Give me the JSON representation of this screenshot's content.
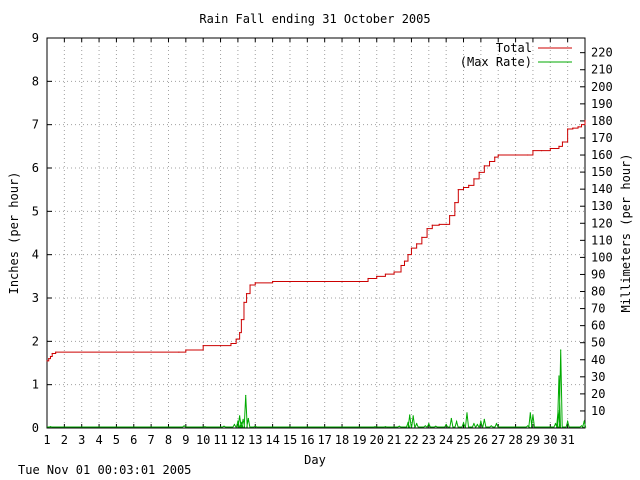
{
  "chart_data": {
    "type": "line",
    "title": "Rain Fall ending 31 October 2005",
    "xlabel": "Day",
    "ylabel": "Inches (per hour)",
    "y2label": "Millimeters (per hour)",
    "xlim": [
      1,
      32
    ],
    "ylim": [
      0,
      9
    ],
    "y2lim": [
      0,
      228.6
    ],
    "x_ticks": [
      "1",
      "2",
      "3",
      "4",
      "5",
      "6",
      "7",
      "8",
      "9",
      "10",
      "11",
      "12",
      "13",
      "14",
      "15",
      "16",
      "17",
      "18",
      "19",
      "20",
      "21",
      "22",
      "23",
      "24",
      "25",
      "26",
      "27",
      "28",
      "29",
      "30",
      "31"
    ],
    "y_ticks": [
      "0",
      "1",
      "2",
      "3",
      "4",
      "5",
      "6",
      "7",
      "8",
      "9"
    ],
    "y2_ticks": [
      "10",
      "20",
      "30",
      "40",
      "50",
      "60",
      "70",
      "80",
      "90",
      "100",
      "110",
      "120",
      "130",
      "140",
      "150",
      "160",
      "170",
      "180",
      "190",
      "200",
      "210",
      "220"
    ],
    "grid": true,
    "legend_position": "top-right",
    "colors": {
      "total": "#cc0000",
      "max_rate": "#00aa00"
    },
    "series": [
      {
        "name": "Total",
        "x": [
          1.0,
          1.1,
          1.2,
          1.3,
          1.5,
          8.6,
          9.0,
          10.0,
          11.0,
          11.6,
          11.9,
          12.1,
          12.2,
          12.35,
          12.5,
          12.7,
          13.0,
          14.0,
          18.0,
          19.0,
          19.5,
          20.0,
          20.5,
          21.0,
          21.4,
          21.6,
          21.8,
          22.0,
          22.3,
          22.6,
          22.9,
          23.2,
          23.6,
          24.0,
          24.2,
          24.5,
          24.7,
          25.0,
          25.3,
          25.6,
          25.9,
          26.2,
          26.5,
          26.8,
          27.0,
          28.0,
          28.7,
          29.0,
          29.5,
          30.0,
          30.5,
          30.7,
          31.0,
          31.3,
          31.6,
          31.8,
          32.0
        ],
        "y": [
          1.55,
          1.6,
          1.65,
          1.72,
          1.75,
          1.75,
          1.8,
          1.9,
          1.9,
          1.95,
          2.05,
          2.2,
          2.5,
          2.9,
          3.1,
          3.3,
          3.35,
          3.38,
          3.38,
          3.38,
          3.45,
          3.5,
          3.55,
          3.6,
          3.75,
          3.85,
          4.0,
          4.15,
          4.25,
          4.4,
          4.6,
          4.68,
          4.7,
          4.7,
          4.9,
          5.2,
          5.5,
          5.55,
          5.6,
          5.75,
          5.9,
          6.05,
          6.15,
          6.25,
          6.3,
          6.3,
          6.3,
          6.4,
          6.4,
          6.45,
          6.5,
          6.6,
          6.9,
          6.92,
          6.95,
          7.0,
          7.1
        ]
      },
      {
        "name": "(Max Rate)",
        "x": [
          1.2,
          8.9,
          10.1,
          11.2,
          11.8,
          12.0,
          12.1,
          12.2,
          12.3,
          12.45,
          12.6,
          13.0,
          19.9,
          20.5,
          21.3,
          21.8,
          21.9,
          22.1,
          22.3,
          22.8,
          23.0,
          23.4,
          24.0,
          24.3,
          24.6,
          25.0,
          25.2,
          25.6,
          25.8,
          26.0,
          26.2,
          26.6,
          26.9,
          28.7,
          28.85,
          29.0,
          30.3,
          30.45,
          30.5,
          30.6,
          31.0,
          31.8,
          31.95
        ],
        "y": [
          0.03,
          0.05,
          0.03,
          0.04,
          0.08,
          0.15,
          0.28,
          0.12,
          0.2,
          0.75,
          0.22,
          0.04,
          0.03,
          0.03,
          0.04,
          0.12,
          0.3,
          0.28,
          0.1,
          0.05,
          0.1,
          0.04,
          0.08,
          0.22,
          0.15,
          0.12,
          0.35,
          0.1,
          0.08,
          0.15,
          0.2,
          0.05,
          0.1,
          0.05,
          0.35,
          0.3,
          0.1,
          0.4,
          1.2,
          1.8,
          0.15,
          0.05,
          0.15
        ]
      }
    ]
  },
  "footer": {
    "timestamp": "Tue Nov 01 00:03:01 2005"
  }
}
